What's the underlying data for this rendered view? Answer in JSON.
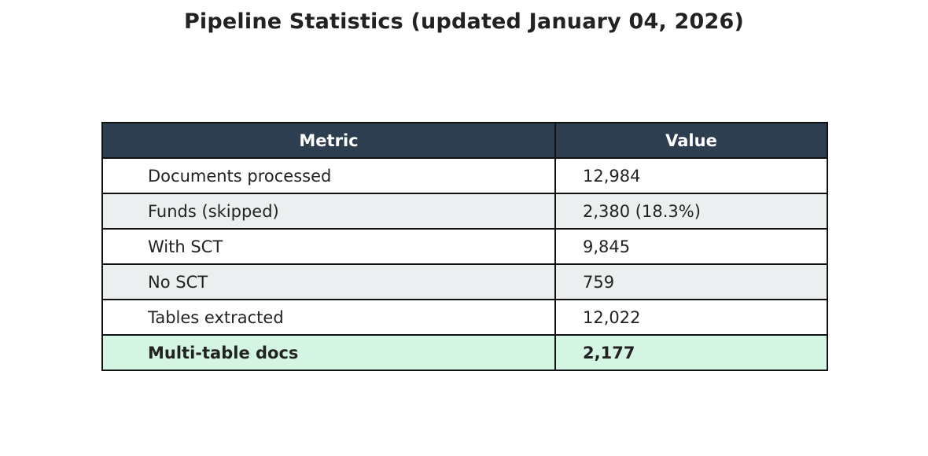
{
  "title": "Pipeline Statistics (updated January 04, 2026)",
  "colors": {
    "header_bg": "#2e3e51",
    "header_text": "#ffffff",
    "row_alt_bg": "#eceff0",
    "highlight_bg": "#d5f5e3",
    "border": "#111111"
  },
  "chart_data": {
    "type": "table",
    "title": "Pipeline Statistics (updated January 04, 2026)",
    "columns": [
      "Metric",
      "Value"
    ],
    "rows": [
      {
        "metric": "Documents processed",
        "value": "12,984"
      },
      {
        "metric": "Funds (skipped)",
        "value": "2,380 (18.3%)"
      },
      {
        "metric": "With SCT",
        "value": "9,845"
      },
      {
        "metric": "No SCT",
        "value": "759"
      },
      {
        "metric": "Tables extracted",
        "value": "12,022"
      },
      {
        "metric": "Multi-table docs",
        "value": "2,177",
        "highlight": true
      }
    ]
  }
}
